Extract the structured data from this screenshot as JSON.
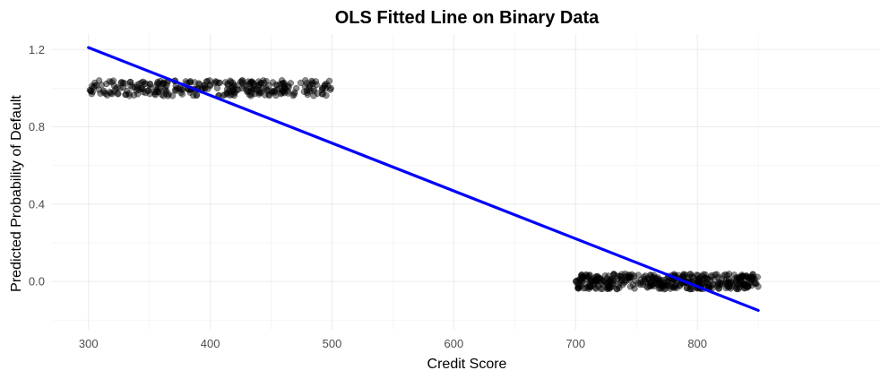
{
  "chart_data": {
    "type": "scatter",
    "title": "OLS Fitted Line on Binary Data",
    "xlabel": "Credit Score",
    "ylabel": "Predicted Probability of Default",
    "xlim": [
      270,
      950
    ],
    "ylim": [
      -0.25,
      1.28
    ],
    "x_ticks": [
      300,
      400,
      500,
      600,
      700,
      800
    ],
    "y_ticks": [
      0.0,
      0.4,
      0.8,
      1.2
    ],
    "x_tick_labels": [
      "300",
      "400",
      "500",
      "600",
      "700",
      "800"
    ],
    "y_tick_labels": [
      "0.0",
      "0.4",
      "0.8",
      "1.2"
    ],
    "grid": true,
    "legend": "none",
    "point_color": "#000000",
    "point_opacity": 0.45,
    "line_color": "#0000ff",
    "series": [
      {
        "kind": "points",
        "x_range": [
          300,
          500
        ],
        "y_center": 1.0,
        "y_jitter": 0.04,
        "count": 300
      },
      {
        "kind": "points",
        "x_range": [
          700,
          850
        ],
        "y_center": 0.0,
        "y_jitter": 0.04,
        "count": 400
      },
      {
        "kind": "line",
        "x": [
          300,
          850
        ],
        "y": [
          1.21,
          -0.15
        ]
      }
    ]
  }
}
